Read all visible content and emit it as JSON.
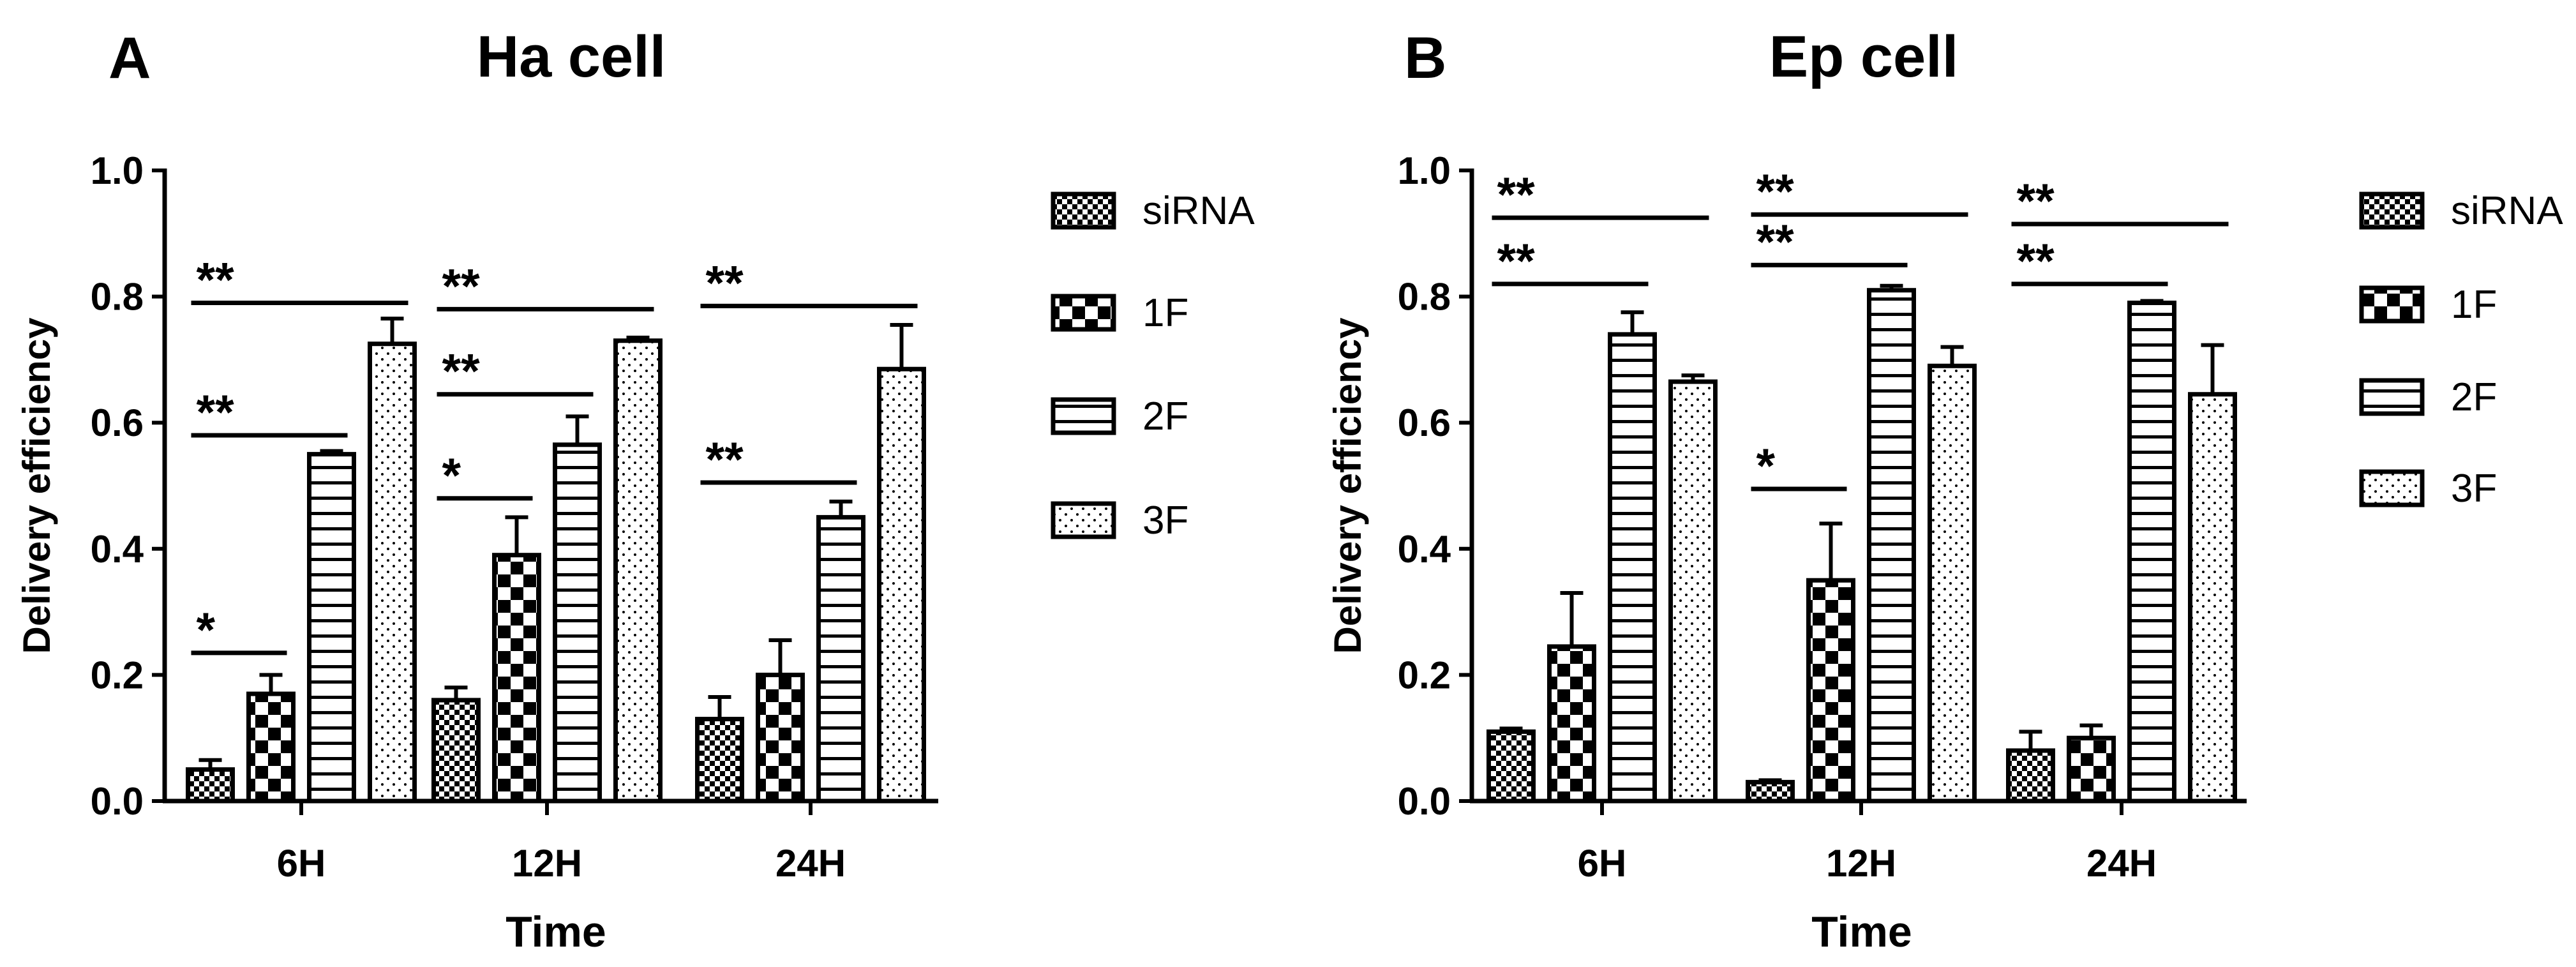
{
  "chart_data": [
    {
      "type": "bar",
      "panel": "A",
      "title": "Ha cell",
      "xlabel": "Time",
      "ylabel": "Delivery efficiency",
      "ylim": [
        0,
        1.0
      ],
      "yticks": [
        "0.0",
        "0.2",
        "0.4",
        "0.6",
        "0.8",
        "1.0"
      ],
      "categories": [
        "6H",
        "12H",
        "24H"
      ],
      "series": [
        {
          "name": "siRNA",
          "pattern": "checker-small",
          "values": [
            0.05,
            0.16,
            0.13
          ],
          "errors": [
            0.015,
            0.02,
            0.035
          ]
        },
        {
          "name": "1F",
          "pattern": "checker-large",
          "values": [
            0.17,
            0.39,
            0.2
          ],
          "errors": [
            0.03,
            0.06,
            0.055
          ]
        },
        {
          "name": "2F",
          "pattern": "hlines",
          "values": [
            0.55,
            0.565,
            0.45
          ],
          "errors": [
            0.005,
            0.045,
            0.025
          ]
        },
        {
          "name": "3F",
          "pattern": "dots",
          "values": [
            0.725,
            0.73,
            0.685
          ],
          "errors": [
            0.04,
            0.005,
            0.07
          ]
        }
      ],
      "significance": [
        {
          "label": "**",
          "cat": 0,
          "from": 0,
          "to": 3,
          "y": 0.79
        },
        {
          "label": "**",
          "cat": 0,
          "from": 0,
          "to": 2,
          "y": 0.58
        },
        {
          "label": "*",
          "cat": 0,
          "from": 0,
          "to": 1,
          "y": 0.235
        },
        {
          "label": "**",
          "cat": 1,
          "from": 0,
          "to": 3,
          "y": 0.78
        },
        {
          "label": "**",
          "cat": 1,
          "from": 0,
          "to": 2,
          "y": 0.645
        },
        {
          "label": "*",
          "cat": 1,
          "from": 0,
          "to": 1,
          "y": 0.48
        },
        {
          "label": "**",
          "cat": 2,
          "from": 0,
          "to": 3,
          "y": 0.785
        },
        {
          "label": "**",
          "cat": 2,
          "from": 0,
          "to": 2,
          "y": 0.505
        }
      ],
      "legend": [
        "siRNA",
        "1F",
        "2F",
        "3F"
      ]
    },
    {
      "type": "bar",
      "panel": "B",
      "title": "Ep cell",
      "xlabel": "Time",
      "ylabel": "Delivery efficiency",
      "ylim": [
        0,
        1.0
      ],
      "yticks": [
        "0.0",
        "0.2",
        "0.4",
        "0.6",
        "0.8",
        "1.0"
      ],
      "categories": [
        "6H",
        "12H",
        "24H"
      ],
      "series": [
        {
          "name": "siRNA",
          "pattern": "checker-small",
          "values": [
            0.11,
            0.03,
            0.08
          ],
          "errors": [
            0.005,
            0.003,
            0.03
          ]
        },
        {
          "name": "1F",
          "pattern": "checker-large",
          "values": [
            0.245,
            0.35,
            0.1
          ],
          "errors": [
            0.085,
            0.09,
            0.02
          ]
        },
        {
          "name": "2F",
          "pattern": "hlines",
          "values": [
            0.74,
            0.81,
            0.79
          ],
          "errors": [
            0.035,
            0.007,
            0.003
          ]
        },
        {
          "name": "3F",
          "pattern": "dots",
          "values": [
            0.665,
            0.69,
            0.645
          ],
          "errors": [
            0.01,
            0.03,
            0.078
          ]
        }
      ],
      "significance": [
        {
          "label": "**",
          "cat": 0,
          "from": 0,
          "to": 3,
          "y": 0.925
        },
        {
          "label": "**",
          "cat": 0,
          "from": 0,
          "to": 2,
          "y": 0.82
        },
        {
          "label": "**",
          "cat": 1,
          "from": 0,
          "to": 3,
          "y": 0.93
        },
        {
          "label": "**",
          "cat": 1,
          "from": 0,
          "to": 2,
          "y": 0.85
        },
        {
          "label": "*",
          "cat": 1,
          "from": 0,
          "to": 1,
          "y": 0.495
        },
        {
          "label": "**",
          "cat": 2,
          "from": 0,
          "to": 3,
          "y": 0.915
        },
        {
          "label": "**",
          "cat": 2,
          "from": 0,
          "to": 2,
          "y": 0.82
        }
      ],
      "legend": [
        "siRNA",
        "1F",
        "2F",
        "3F"
      ]
    }
  ]
}
